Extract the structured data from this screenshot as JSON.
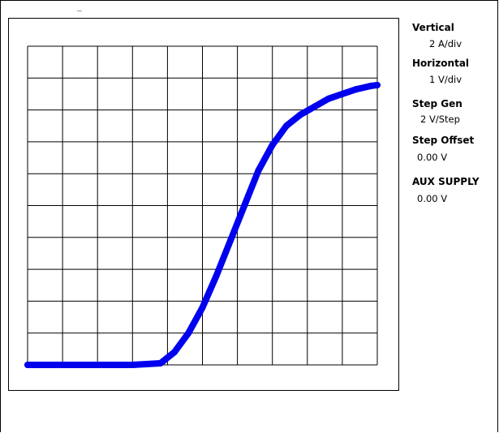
{
  "chart_data": {
    "type": "line",
    "title": "",
    "xlabel": "",
    "ylabel": "",
    "grid": true,
    "divisions": {
      "x": 10,
      "y": 10
    },
    "xlim": [
      0,
      10
    ],
    "ylim": [
      0,
      10
    ],
    "series": [
      {
        "color": "#0000ee",
        "x": [
          0.0,
          1.0,
          2.0,
          3.0,
          3.8,
          4.2,
          4.6,
          5.0,
          5.4,
          5.8,
          6.2,
          6.6,
          7.0,
          7.4,
          7.8,
          8.2,
          8.6,
          9.0,
          9.4,
          9.8,
          10.0
        ],
        "y": [
          0.0,
          0.0,
          0.0,
          0.0,
          0.05,
          0.4,
          1.0,
          1.8,
          2.8,
          3.9,
          5.0,
          6.1,
          6.9,
          7.5,
          7.85,
          8.1,
          8.35,
          8.5,
          8.65,
          8.75,
          8.78
        ]
      }
    ]
  },
  "settings": {
    "vertical_label": "Vertical",
    "vertical_value": "2 A/div",
    "horizontal_label": "Horizontal",
    "horizontal_value": "1 V/div",
    "stepgen_label": "Step Gen",
    "stepgen_value": "2 V/Step",
    "stepoffset_label": "Step Offset",
    "stepoffset_value": "0.00 V",
    "aux_label": "AUX SUPPLY",
    "aux_value": "0.00 V"
  }
}
